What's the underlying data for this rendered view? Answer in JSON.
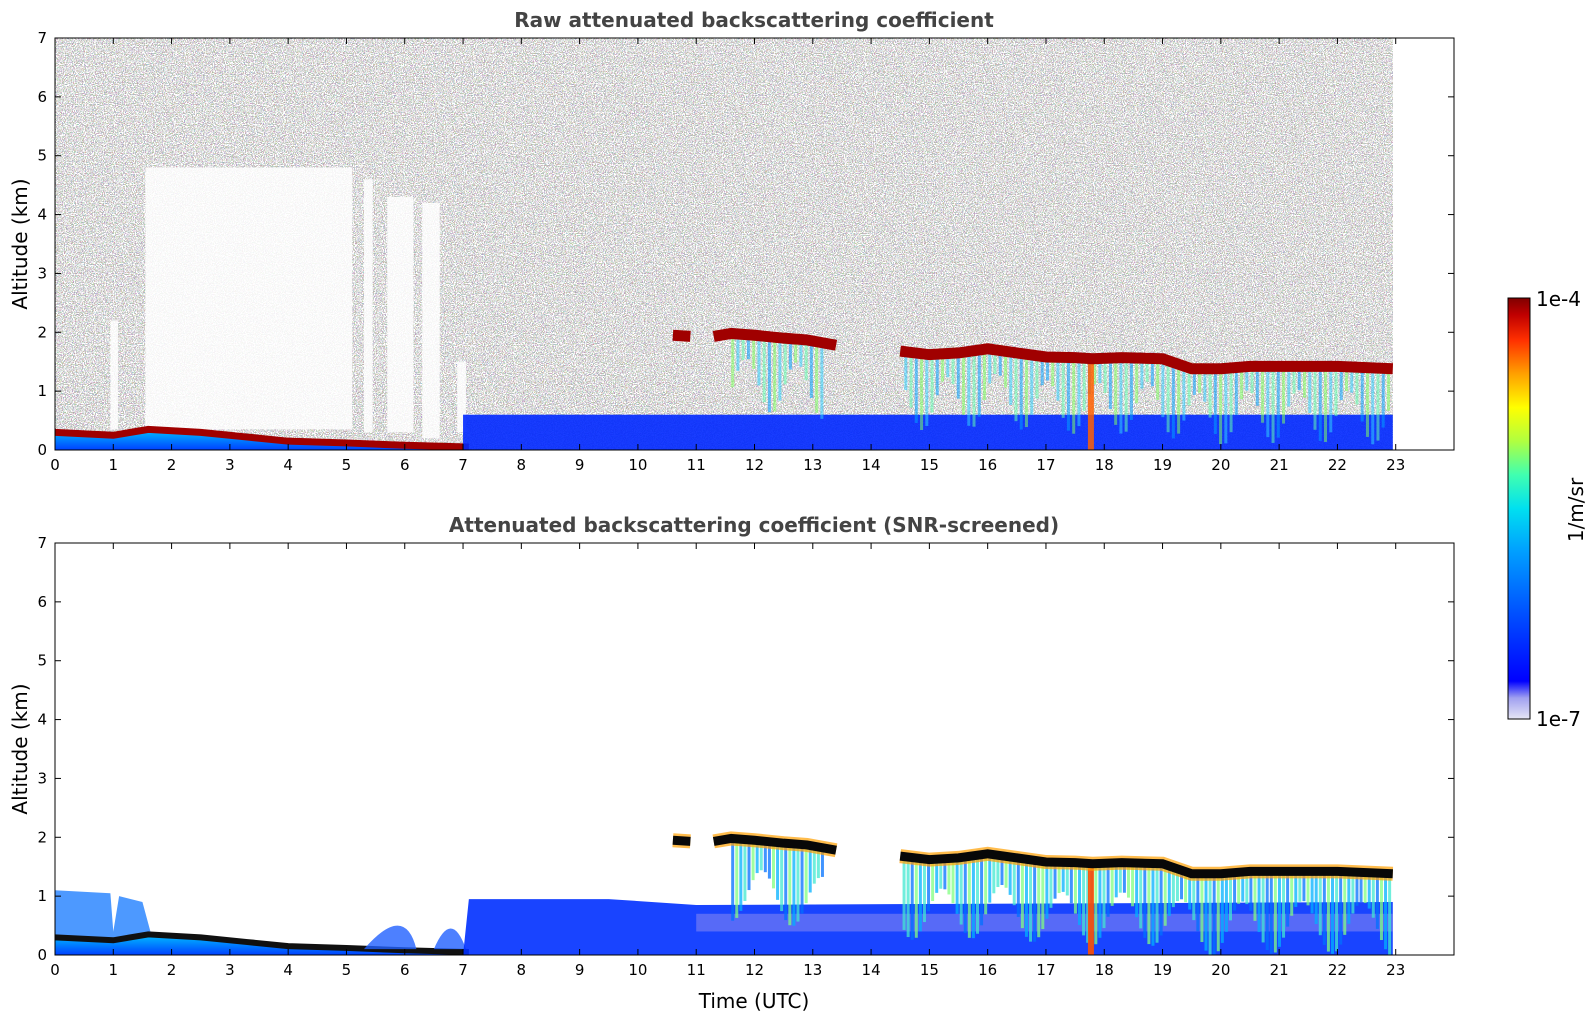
{
  "chart_data": [
    {
      "type": "heatmap",
      "title": "Raw attenuated backscattering coefficient",
      "xlabel": "",
      "ylabel": "Altitude (km)",
      "xlim": [
        0,
        24
      ],
      "ylim": [
        0,
        7
      ],
      "x_ticks": [
        "0",
        "1",
        "2",
        "3",
        "4",
        "5",
        "6",
        "7",
        "8",
        "9",
        "10",
        "11",
        "12",
        "13",
        "14",
        "15",
        "16",
        "17",
        "18",
        "19",
        "20",
        "21",
        "22",
        "23"
      ],
      "y_ticks": [
        "0",
        "1",
        "2",
        "3",
        "4",
        "5",
        "6",
        "7"
      ],
      "data_end_time": 22.95,
      "features": {
        "boundary_layer_top": [
          [
            0,
            0.3
          ],
          [
            1,
            0.25
          ],
          [
            1.6,
            0.35
          ],
          [
            2.5,
            0.3
          ],
          [
            3.3,
            0.22
          ],
          [
            4,
            0.15
          ],
          [
            5,
            0.12
          ],
          [
            6,
            0.08
          ],
          [
            7.1,
            0.05
          ]
        ],
        "cloud_base": [
          [
            10.6,
            1.95
          ],
          [
            10.9,
            1.93
          ],
          [
            11.3,
            1.93
          ],
          [
            11.6,
            1.98
          ],
          [
            12,
            1.95
          ],
          [
            12.5,
            1.9
          ],
          [
            12.9,
            1.87
          ],
          [
            13.4,
            1.78
          ],
          [
            14.1,
            1.72
          ],
          [
            14.5,
            1.68
          ],
          [
            15,
            1.62
          ],
          [
            15.5,
            1.65
          ],
          [
            16,
            1.72
          ],
          [
            16.5,
            1.65
          ],
          [
            17,
            1.58
          ],
          [
            17.5,
            1.57
          ],
          [
            17.8,
            1.55
          ],
          [
            18.3,
            1.57
          ],
          [
            19,
            1.55
          ],
          [
            19.5,
            1.38
          ],
          [
            20,
            1.38
          ],
          [
            20.5,
            1.42
          ],
          [
            21,
            1.42
          ],
          [
            22,
            1.42
          ],
          [
            22.95,
            1.38
          ]
        ]
      }
    },
    {
      "type": "heatmap",
      "title": "Attenuated backscattering coefficient (SNR-screened)",
      "xlabel": "Time (UTC)",
      "ylabel": "Altitude (km)",
      "xlim": [
        0,
        24
      ],
      "ylim": [
        0,
        7
      ],
      "x_ticks": [
        "0",
        "1",
        "2",
        "3",
        "4",
        "5",
        "6",
        "7",
        "8",
        "9",
        "10",
        "11",
        "12",
        "13",
        "14",
        "15",
        "16",
        "17",
        "18",
        "19",
        "20",
        "21",
        "22",
        "23"
      ],
      "y_ticks": [
        "0",
        "1",
        "2",
        "3",
        "4",
        "5",
        "6",
        "7"
      ],
      "data_end_time": 22.95
    }
  ],
  "colorbar": {
    "label": "1/m/sr",
    "max_label": "1e-4",
    "min_label": "1e-7",
    "scale": "log",
    "colors": [
      "#e6e6f5",
      "#c8c8f0",
      "#a0a0f0",
      "#0000ff",
      "#0050ff",
      "#00a0ff",
      "#00e0f0",
      "#40ffb0",
      "#b0ff40",
      "#ffff00",
      "#ffa000",
      "#ff3000",
      "#c00000",
      "#800000"
    ]
  }
}
